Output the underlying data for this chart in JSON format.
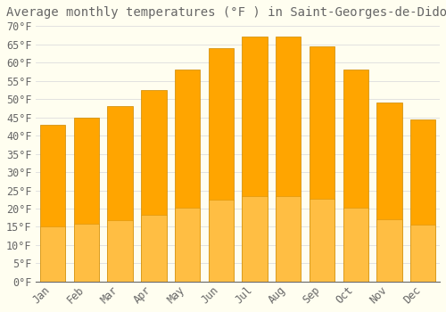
{
  "title": "Average monthly temperatures (°F ) in Saint-Georges-de-Didonne",
  "months": [
    "Jan",
    "Feb",
    "Mar",
    "Apr",
    "May",
    "Jun",
    "Jul",
    "Aug",
    "Sep",
    "Oct",
    "Nov",
    "Dec"
  ],
  "values": [
    43,
    45,
    48,
    52.5,
    58,
    64,
    67,
    67,
    64.5,
    58,
    49,
    44.5
  ],
  "bar_color_top": "#FFA500",
  "bar_color_bottom": "#FFD070",
  "bar_edge_color": "#CC8800",
  "background_color": "#FFFEF0",
  "grid_color": "#DDDDDD",
  "text_color": "#666666",
  "ylim": [
    0,
    70
  ],
  "ytick_step": 5,
  "title_fontsize": 10,
  "tick_fontsize": 8.5,
  "figsize": [
    5.0,
    3.5
  ],
  "dpi": 100
}
